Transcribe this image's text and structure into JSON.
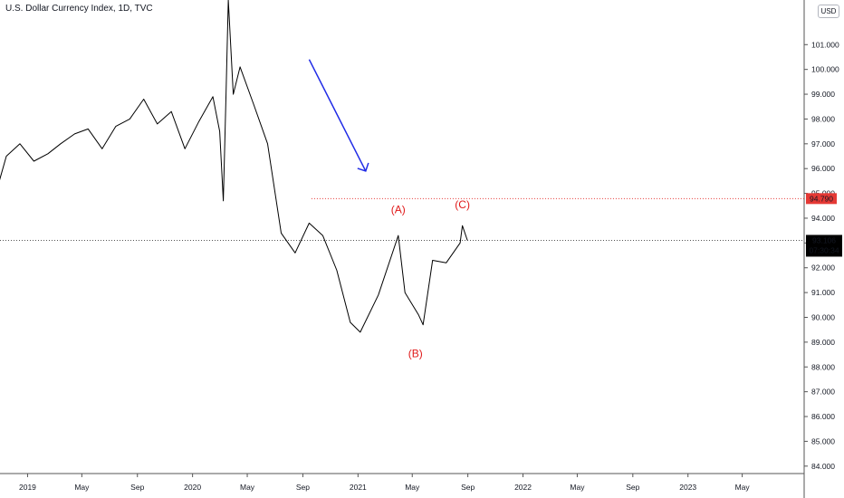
{
  "title": "U.S. Dollar Currency Index, 1D, TVC",
  "currency": "USD",
  "colors": {
    "price": "#000000",
    "arrow": "#1f2ae6",
    "resistance": "#e53935",
    "last_price_line": "#555555",
    "annotation": "#e01818",
    "badge_dark": "#000000"
  },
  "chart_data": {
    "type": "line",
    "x": [
      "2018-10",
      "2018-11",
      "2018-12",
      "2019-01",
      "2019-02",
      "2019-03",
      "2019-04",
      "2019-05",
      "2019-06",
      "2019-07",
      "2019-08",
      "2019-09",
      "2019-10",
      "2019-11",
      "2019-12",
      "2020-01",
      "2020-02",
      "2020-03-01",
      "2020-03-09",
      "2020-03-15",
      "2020-03-20",
      "2020-03-31",
      "2020-04",
      "2020-05",
      "2020-06",
      "2020-07",
      "2020-08",
      "2020-09",
      "2020-10",
      "2020-11",
      "2020-12",
      "2021-01-06",
      "2021-02",
      "2021-03-31",
      "2021-04",
      "2021-05",
      "2021-05-25",
      "2021-06",
      "2021-07",
      "2021-08",
      "2021-08-20",
      "2021-08-31"
    ],
    "values": [
      94.5,
      96.5,
      97.0,
      96.3,
      96.6,
      97.0,
      97.4,
      97.6,
      96.8,
      97.7,
      98.0,
      98.8,
      97.8,
      98.3,
      96.8,
      97.9,
      98.9,
      97.5,
      94.7,
      99.0,
      102.8,
      99.0,
      100.1,
      98.6,
      97.0,
      93.4,
      92.6,
      93.8,
      93.3,
      91.9,
      89.8,
      89.4,
      90.9,
      93.3,
      91.0,
      90.1,
      89.7,
      92.3,
      92.2,
      93.0,
      93.7,
      93.106
    ],
    "ylim": [
      83.7,
      102.8
    ],
    "y_ticks": [
      "101.000",
      "100.000",
      "99.000",
      "98.000",
      "97.000",
      "96.000",
      "95.000",
      "94.000",
      "93.000",
      "92.000",
      "91.000",
      "90.000",
      "89.000",
      "88.000",
      "87.000",
      "86.000",
      "85.000",
      "84.000"
    ],
    "x_ticks": [
      "2019",
      "May",
      "Sep",
      "2020",
      "May",
      "Sep",
      "2021",
      "May",
      "Sep",
      "2022",
      "May",
      "Sep",
      "2023",
      "May"
    ],
    "price_labels": {
      "resistance": "94.790",
      "last": "93.106",
      "countdown": "07:30:34"
    },
    "resistance_level": 94.79,
    "last_price": 93.106,
    "annotations": [
      "(A)",
      "(B)",
      "(C)"
    ],
    "grid": false,
    "scale": "linear"
  }
}
